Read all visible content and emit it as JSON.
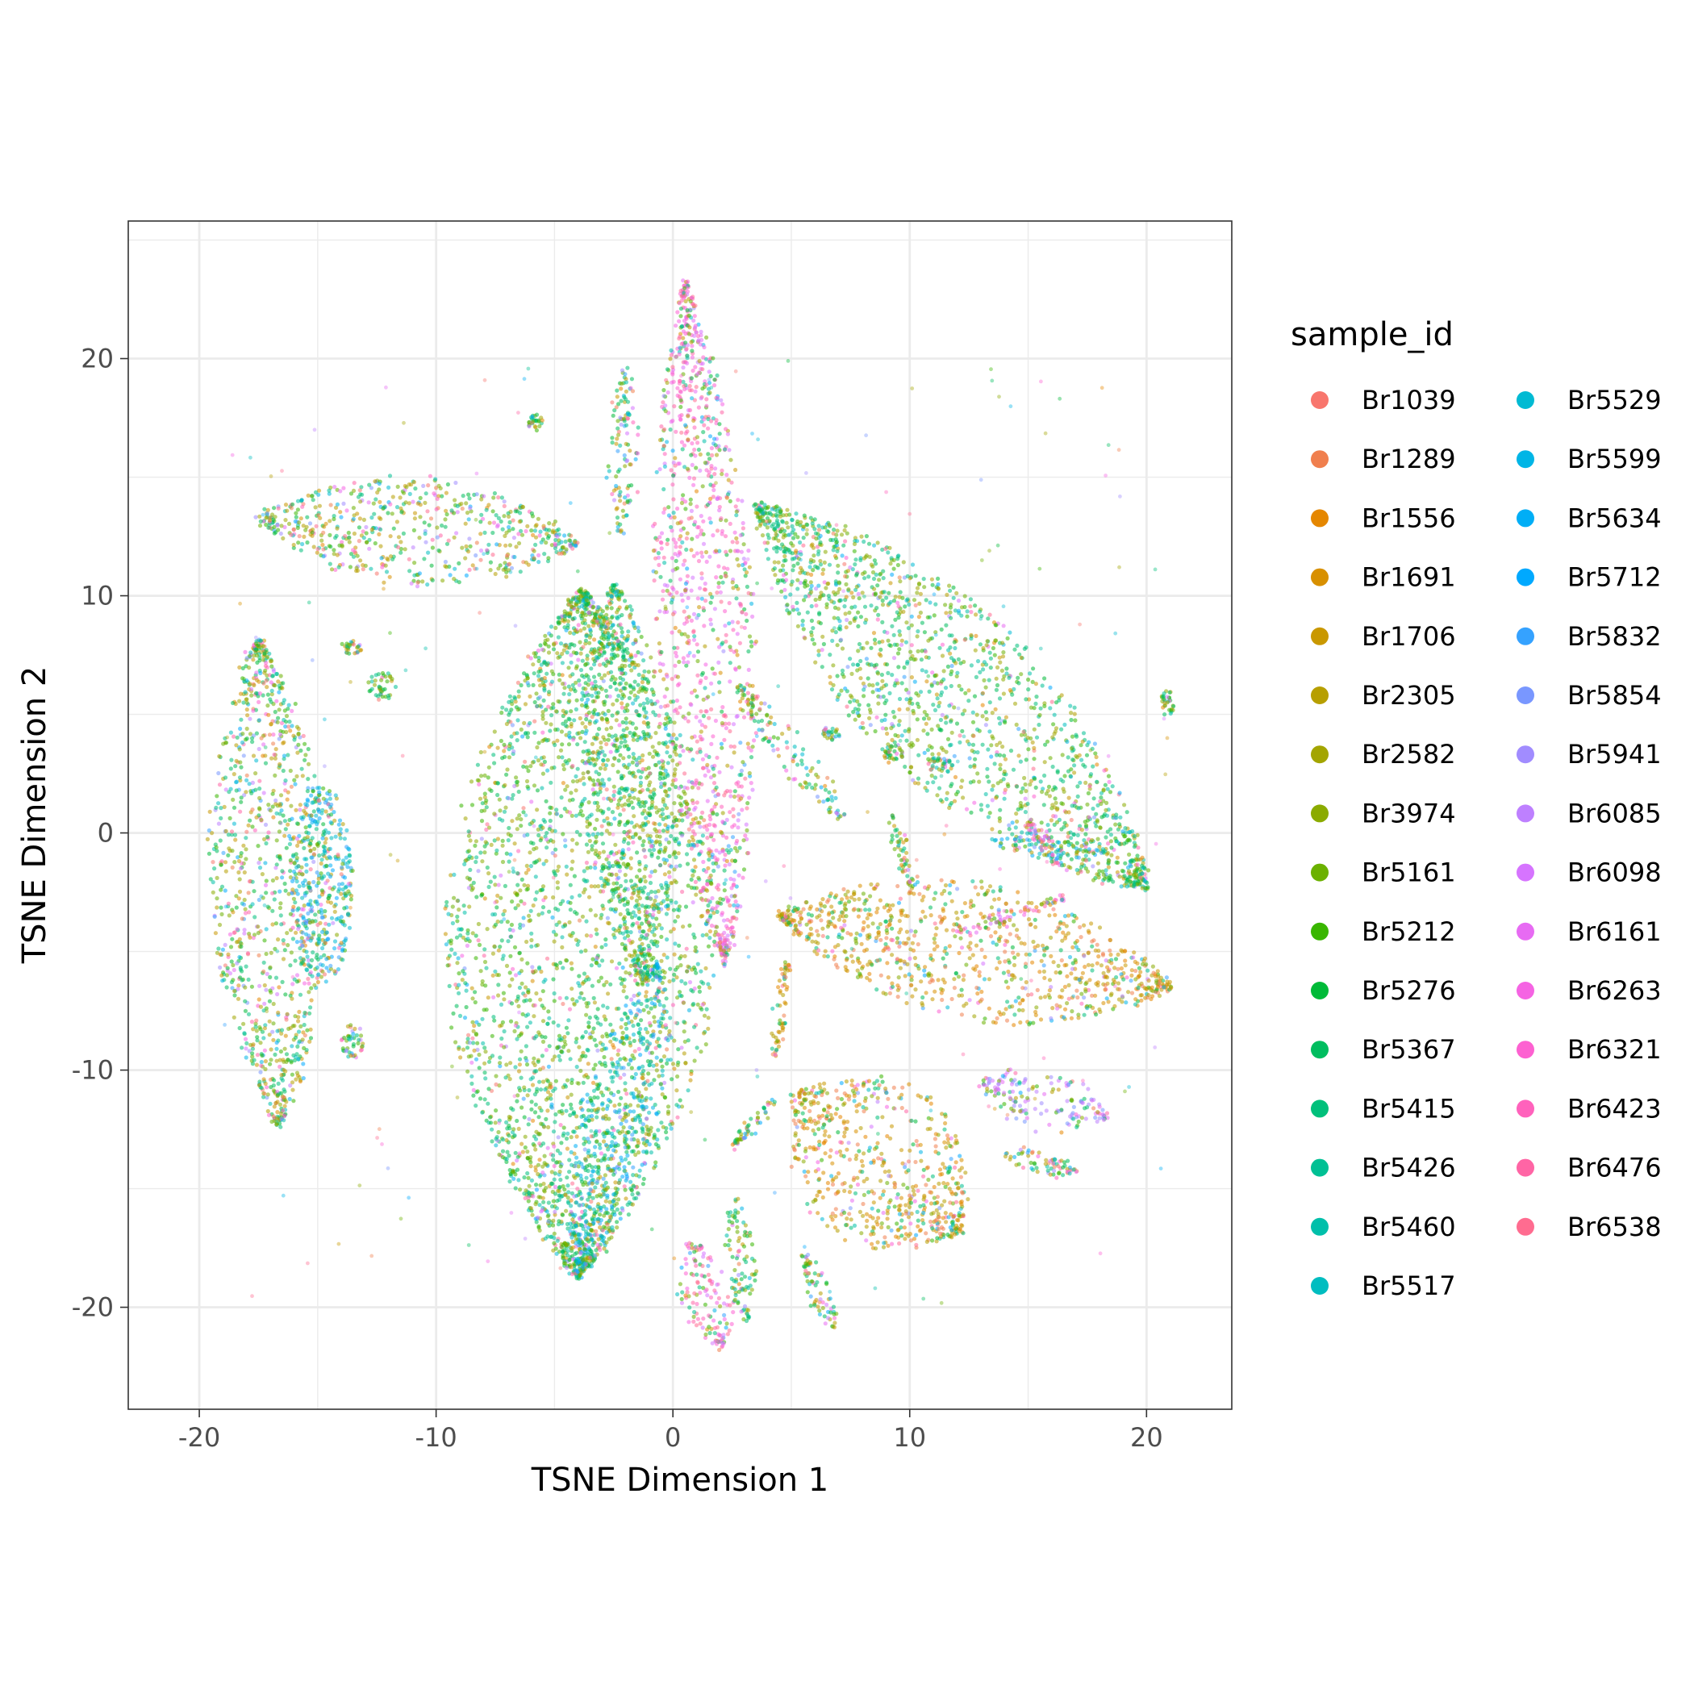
{
  "chart_data": {
    "type": "scatter",
    "title": "",
    "xlabel": "TSNE Dimension 1",
    "ylabel": "TSNE Dimension 2",
    "xlim": [
      -23,
      23.6
    ],
    "ylim": [
      -24.3,
      25.8
    ],
    "x_ticks": [
      -20,
      -10,
      0,
      10,
      20
    ],
    "y_ticks": [
      -20,
      -10,
      0,
      10,
      20
    ],
    "x_tick_labels": [
      "-20",
      "-10",
      "0",
      "10",
      "20"
    ],
    "y_tick_labels": [
      "-20",
      "-10",
      "0",
      "10",
      "20"
    ],
    "grid": true,
    "legend_placement": "right",
    "legend_columns": 2,
    "legend_title": "sample_id",
    "series": [
      {
        "name": "Br1039",
        "color": "#F8766D"
      },
      {
        "name": "Br1289",
        "color": "#F07F4E"
      },
      {
        "name": "Br1556",
        "color": "#E58700"
      },
      {
        "name": "Br1691",
        "color": "#D89000"
      },
      {
        "name": "Br1706",
        "color": "#C99800"
      },
      {
        "name": "Br2305",
        "color": "#B79F00"
      },
      {
        "name": "Br2582",
        "color": "#A3A500"
      },
      {
        "name": "Br3974",
        "color": "#8BAB00"
      },
      {
        "name": "Br5161",
        "color": "#6BB100"
      },
      {
        "name": "Br5212",
        "color": "#39B600"
      },
      {
        "name": "Br5276",
        "color": "#00BA38"
      },
      {
        "name": "Br5367",
        "color": "#00BD5F"
      },
      {
        "name": "Br5415",
        "color": "#00C07B"
      },
      {
        "name": "Br5426",
        "color": "#00C094"
      },
      {
        "name": "Br5460",
        "color": "#00BFAA"
      },
      {
        "name": "Br5517",
        "color": "#00BDC0"
      },
      {
        "name": "Br5529",
        "color": "#00BAD3"
      },
      {
        "name": "Br5599",
        "color": "#00B5E6"
      },
      {
        "name": "Br5634",
        "color": "#00AEF6"
      },
      {
        "name": "Br5712",
        "color": "#00A9FF"
      },
      {
        "name": "Br5832",
        "color": "#35A2FF"
      },
      {
        "name": "Br5854",
        "color": "#7997FF"
      },
      {
        "name": "Br5941",
        "color": "#A18CFF"
      },
      {
        "name": "Br6085",
        "color": "#BE80FF"
      },
      {
        "name": "Br6098",
        "color": "#D674FF"
      },
      {
        "name": "Br6161",
        "color": "#E76BF3"
      },
      {
        "name": "Br6263",
        "color": "#F564E3"
      },
      {
        "name": "Br6321",
        "color": "#FD61D1"
      },
      {
        "name": "Br6423",
        "color": "#FF62BC"
      },
      {
        "name": "Br6476",
        "color": "#FF65A5"
      },
      {
        "name": "Br6538",
        "color": "#FF6C90"
      }
    ],
    "clusters": [
      {
        "shape": "leaf",
        "x1": -17.5,
        "y1": 13.2,
        "x2": -4,
        "y2": 12.2,
        "w": 4.6,
        "mix": "mixed"
      },
      {
        "shape": "leaf",
        "x1": -17.5,
        "y1": 8.2,
        "x2": -16.6,
        "y2": -12.3,
        "w": 5.2,
        "mix": "mixed"
      },
      {
        "shape": "blob",
        "cx": -14.8,
        "cy": -2.2,
        "rx": 1.3,
        "ry": 4.2,
        "rot": 0,
        "mix": "blue"
      },
      {
        "shape": "blob",
        "cx": -13.5,
        "cy": -8.8,
        "rx": 0.5,
        "ry": 0.8,
        "rot": 0,
        "mix": "mixed"
      },
      {
        "shape": "leaf",
        "x1": -4,
        "y1": -18.7,
        "x2": -3.8,
        "y2": 10.2,
        "w": 11.5,
        "mix": "green"
      },
      {
        "shape": "leaf",
        "x1": -4,
        "y1": -18.5,
        "x2": -0.6,
        "y2": -5.5,
        "w": 3.2,
        "mix": "blue"
      },
      {
        "shape": "leaf",
        "x1": -1.2,
        "y1": -6.2,
        "x2": -2.5,
        "y2": 10.5,
        "w": 4.2,
        "mix": "green"
      },
      {
        "shape": "leaf",
        "x1": 0.5,
        "y1": 23.3,
        "x2": 2.2,
        "y2": -5.5,
        "w": 4.2,
        "mix": "pink"
      },
      {
        "shape": "leaf",
        "x1": -2,
        "y1": 19.5,
        "x2": -2.2,
        "y2": 12.5,
        "w": 1.2,
        "mix": "mixed"
      },
      {
        "shape": "leaf",
        "x1": 3.5,
        "y1": 13.8,
        "x2": 20,
        "y2": -2.3,
        "w": 7.5,
        "mix": "green"
      },
      {
        "shape": "leaf",
        "x1": 2.8,
        "y1": 6.2,
        "x2": 7.2,
        "y2": 0.5,
        "w": 1.4,
        "mix": "mixed"
      },
      {
        "shape": "leaf",
        "x1": 9.3,
        "y1": 0.8,
        "x2": 10.2,
        "y2": -2.5,
        "w": 0.6,
        "mix": "mixed"
      },
      {
        "shape": "leaf",
        "x1": 13.5,
        "y1": -0.3,
        "x2": 18.2,
        "y2": -0.8,
        "w": 1.1,
        "mix": "blue"
      },
      {
        "shape": "leaf",
        "x1": 15,
        "y1": 0.5,
        "x2": 16.5,
        "y2": -1.5,
        "w": 0.5,
        "mix": "pink"
      },
      {
        "shape": "leaf",
        "x1": 12,
        "y1": -4.3,
        "x2": 16.5,
        "y2": -2.7,
        "w": 0.6,
        "mix": "pink"
      },
      {
        "shape": "leaf",
        "x1": 4.5,
        "y1": -3.5,
        "x2": 21,
        "y2": -6.5,
        "w": 5.8,
        "mix": "orange"
      },
      {
        "shape": "leaf",
        "x1": 13,
        "y1": -10.5,
        "x2": 18.3,
        "y2": -12,
        "w": 2.5,
        "mix": "purple"
      },
      {
        "shape": "leaf",
        "x1": 14,
        "y1": -13.5,
        "x2": 17,
        "y2": -14.3,
        "w": 1.1,
        "mix": "mixed"
      },
      {
        "shape": "leaf",
        "x1": 5.2,
        "y1": -11,
        "x2": 12.2,
        "y2": -16.8,
        "w": 7.2,
        "mix": "orange"
      },
      {
        "shape": "leaf",
        "x1": 5.5,
        "y1": -17.8,
        "x2": 6.8,
        "y2": -20.8,
        "w": 1.0,
        "mix": "mixed"
      },
      {
        "shape": "leaf",
        "x1": 0.7,
        "y1": -17.2,
        "x2": 2.1,
        "y2": -21.8,
        "w": 2.2,
        "mix": "pink"
      },
      {
        "shape": "leaf",
        "x1": 2.6,
        "y1": -15.3,
        "x2": 3.1,
        "y2": -20.5,
        "w": 1.2,
        "mix": "green"
      },
      {
        "shape": "leaf",
        "x1": 2.6,
        "y1": -13.2,
        "x2": 4.3,
        "y2": -11.2,
        "w": 0.5,
        "mix": "mixed"
      },
      {
        "shape": "leaf",
        "x1": 4.3,
        "y1": -9.3,
        "x2": 4.8,
        "y2": -5.5,
        "w": 0.6,
        "mix": "orange"
      },
      {
        "shape": "blob",
        "cx": -12.3,
        "cy": 6.2,
        "rx": 0.6,
        "ry": 0.6,
        "rot": 0,
        "mix": "green"
      },
      {
        "shape": "blob",
        "cx": -13.6,
        "cy": 7.8,
        "rx": 0.5,
        "ry": 0.3,
        "rot": 0,
        "mix": "mixed"
      },
      {
        "shape": "blob",
        "cx": -5.8,
        "cy": 17.3,
        "rx": 0.3,
        "ry": 0.4,
        "rot": 0,
        "mix": "green"
      },
      {
        "shape": "blob",
        "cx": 11.3,
        "cy": 2.9,
        "rx": 0.8,
        "ry": 0.3,
        "rot": 0,
        "mix": "mixed"
      },
      {
        "shape": "blob",
        "cx": 9.3,
        "cy": 3.3,
        "rx": 0.4,
        "ry": 0.4,
        "rot": 0,
        "mix": "mixed"
      },
      {
        "shape": "blob",
        "cx": 20.9,
        "cy": 5.5,
        "rx": 0.3,
        "ry": 0.6,
        "rot": 0,
        "mix": "green"
      },
      {
        "shape": "blob",
        "cx": 6.7,
        "cy": 4.2,
        "rx": 0.4,
        "ry": 0.3,
        "rot": 0,
        "mix": "mixed"
      }
    ]
  }
}
